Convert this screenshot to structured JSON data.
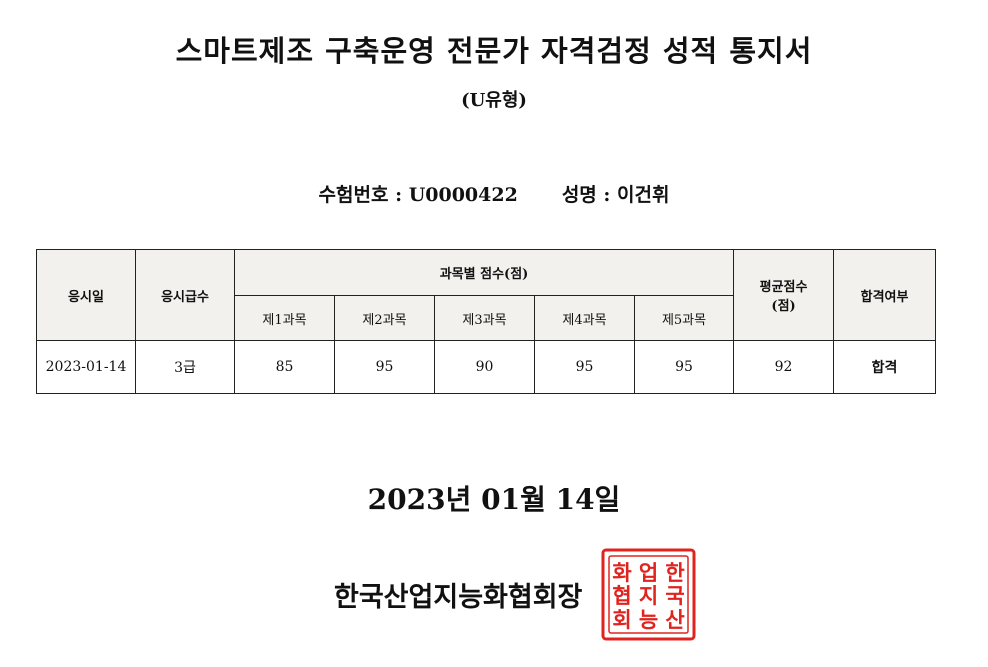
{
  "document": {
    "title": "스마트제조 구축운영 전문가 자격검정 성적 통지서",
    "subtitle": "(U유형)"
  },
  "examinee": {
    "id_label": "수험번호 : U0000422",
    "name_label": "성명 : 이건휘"
  },
  "table": {
    "headers": {
      "exam_date": "응시일",
      "grade": "응시급수",
      "subject_scores": "과목별 점수(점)",
      "subjects": [
        "제1과목",
        "제2과목",
        "제3과목",
        "제4과목",
        "제5과목"
      ],
      "average_line1": "평균점수",
      "average_line2": "(점)",
      "result": "합격여부"
    },
    "row": {
      "exam_date": "2023-01-14",
      "grade": "3급",
      "scores": [
        "85",
        "95",
        "90",
        "95",
        "95"
      ],
      "average": "92",
      "result": "합격"
    }
  },
  "issue_date": "2023년 01월 14일",
  "issuer": "한국산업지능화협회장",
  "seal": {
    "color": "#e0231e",
    "text": "한국산업지능화협회"
  }
}
